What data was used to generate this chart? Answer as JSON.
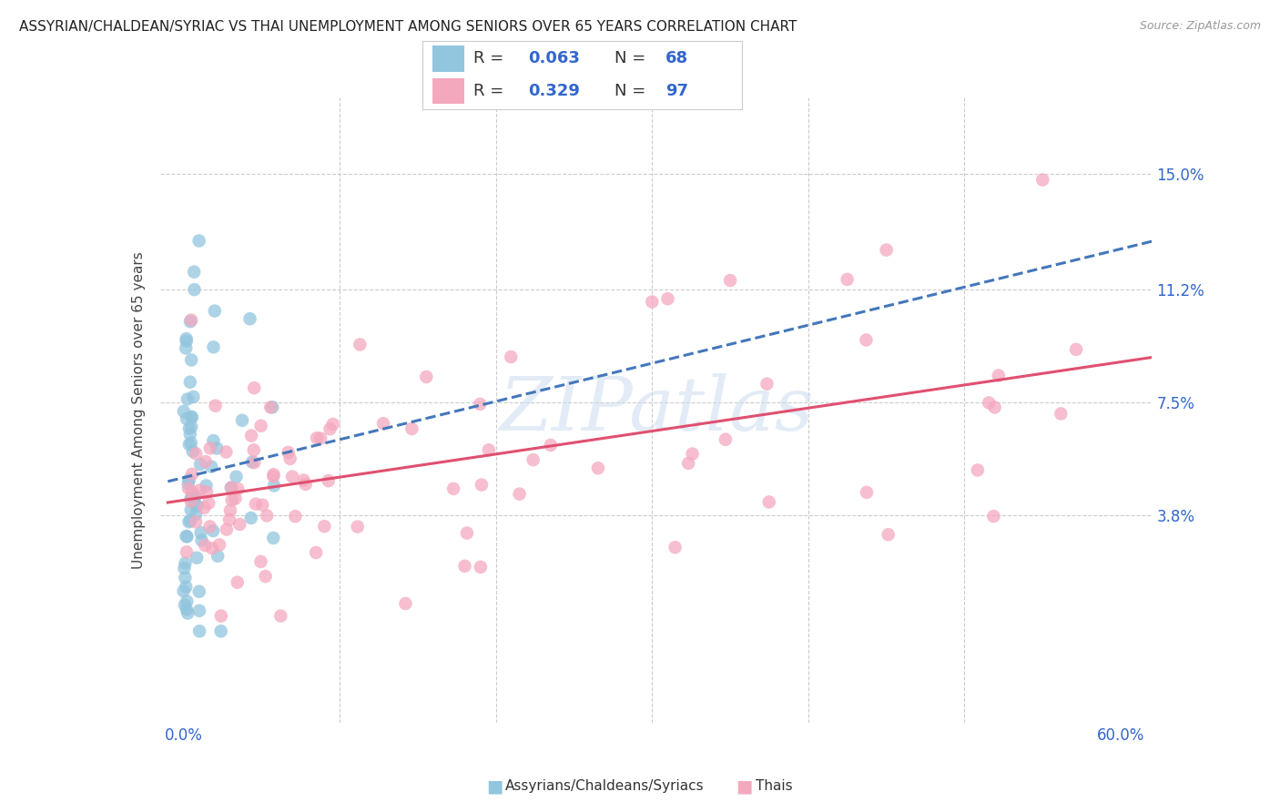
{
  "title": "ASSYRIAN/CHALDEAN/SYRIAC VS THAI UNEMPLOYMENT AMONG SENIORS OVER 65 YEARS CORRELATION CHART",
  "source": "Source: ZipAtlas.com",
  "ylabel": "Unemployment Among Seniors over 65 years",
  "ytick_labels": [
    "3.8%",
    "7.5%",
    "11.2%",
    "15.0%"
  ],
  "ytick_values": [
    3.8,
    7.5,
    11.2,
    15.0
  ],
  "legend_label_blue": "Assyrians/Chaldeans/Syriacs",
  "legend_label_pink": "Thais",
  "blue_color": "#92c5de",
  "pink_color": "#f4a8be",
  "blue_line_color": "#4477bb",
  "pink_line_color": "#e05070",
  "watermark_text": "ZIPatlas",
  "title_fontsize": 11,
  "source_fontsize": 9,
  "tick_fontsize": 12,
  "legend_fontsize": 13
}
